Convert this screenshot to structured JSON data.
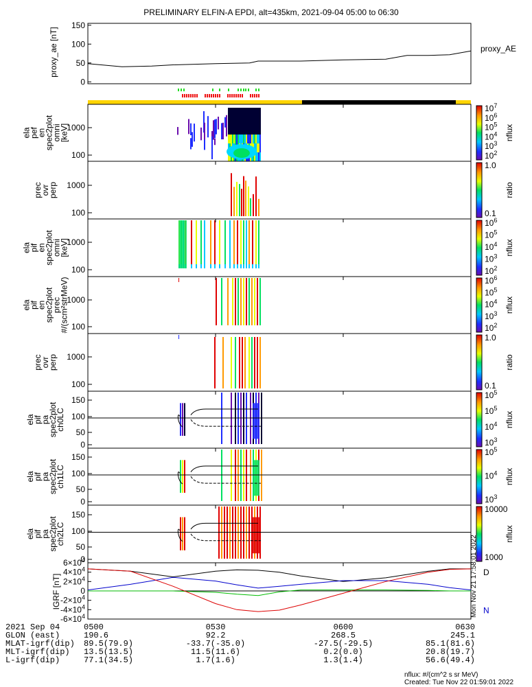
{
  "title": "PRELIMINARY ELFIN-A EPDI, alt=435km, 2021-09-04 05:00 to 06:30",
  "colors": {
    "orbit_bar_day": "#ffd400",
    "orbit_bar_night": "#000000",
    "flag_green": "#22dd22",
    "flag_red": "#ee1111"
  },
  "chart_data": [
    {
      "type": "line",
      "panel": "proxy_ae",
      "ylabel": "proxy_ae [nT]",
      "ylim": [
        -5,
        155
      ],
      "yticks": [
        0,
        50,
        100,
        150
      ],
      "legend": "proxy_AE",
      "x_minutes": [
        0,
        8,
        15,
        20,
        30,
        38,
        40,
        45,
        50,
        60,
        70,
        75,
        80,
        85,
        90
      ],
      "values": [
        48,
        40,
        42,
        45,
        48,
        50,
        55,
        55,
        55,
        58,
        60,
        70,
        70,
        72,
        82
      ]
    },
    {
      "type": "heatmap",
      "panel": "elx_pef_en_spec2plot_omni",
      "ylabel": "ela pef en spec2plot omni [keV]",
      "yticks": [
        "100",
        "1000"
      ],
      "colorbar": {
        "label": "nflux",
        "ticks": [
          "10^2",
          "10^3",
          "10^4",
          "10^5",
          "10^6",
          "10^7"
        ]
      }
    },
    {
      "type": "heatmap",
      "panel": "prec_ovr_perp_e",
      "ylabel": "prec ovr perp",
      "yticks": [
        "100",
        "1000"
      ],
      "colorbar": {
        "label": "ratio",
        "ticks": [
          "0.1",
          "1.0"
        ]
      }
    },
    {
      "type": "heatmap",
      "panel": "elx_pif_en_spec2plot_omni",
      "ylabel": "ela pif en spec2plot omni [keV]",
      "yticks": [
        "100",
        "1000"
      ],
      "colorbar": {
        "label": "nflux",
        "ticks": [
          "10^2",
          "10^3",
          "10^4",
          "10^5",
          "10^6"
        ]
      }
    },
    {
      "type": "heatmap",
      "panel": "elx_pif_en_spec2plot_prec",
      "ylabel": "ela pif en spec2plot prec #/(scm²strMeV)",
      "yticks": [
        "100",
        "1000"
      ],
      "colorbar": {
        "label": "nflux",
        "ticks": [
          "10^2",
          "10^3",
          "10^4",
          "10^5",
          "10^6"
        ]
      }
    },
    {
      "type": "heatmap",
      "panel": "prec_ovr_perp_i",
      "ylabel": "prec ovr perp",
      "yticks": [
        "100",
        "1000"
      ],
      "colorbar": {
        "label": "ratio",
        "ticks": [
          "0.1",
          "1.0"
        ]
      }
    },
    {
      "type": "heatmap",
      "panel": "pa_ch0LC",
      "ylabel": "ela pif pa spec2plot ch0LC",
      "yticks": [
        "0",
        "50",
        "100",
        "150"
      ],
      "colorbar": {
        "label": "nflux",
        "ticks": [
          "10^3",
          "10^4",
          "10^5",
          "10^5"
        ]
      }
    },
    {
      "type": "heatmap",
      "panel": "pa_ch1LC",
      "ylabel": "ela pif pa spec2plot ch1LC",
      "yticks": [
        "0",
        "50",
        "100",
        "150"
      ],
      "colorbar": {
        "label": "nflux",
        "ticks": [
          "10^3",
          "10^4",
          "10^5"
        ]
      }
    },
    {
      "type": "heatmap",
      "panel": "pa_ch2LC",
      "ylabel": "ela pif pa spec2plot ch2LC",
      "yticks": [
        "0",
        "50",
        "100",
        "150"
      ],
      "colorbar": {
        "label": "nflux",
        "ticks": [
          "1000",
          "10000"
        ]
      }
    },
    {
      "type": "line",
      "panel": "igrf",
      "ylabel": "IGRF [nT]",
      "ylim": [
        -60000,
        60000
      ],
      "yticks": [
        "-6x10^4",
        "-4x10^4",
        "-2x10^4",
        "0",
        "2x10^4",
        "4x10^4",
        "6x10^4"
      ],
      "x_minutes": [
        0,
        10,
        20,
        30,
        35,
        40,
        45,
        50,
        60,
        70,
        80,
        85,
        90
      ],
      "series": [
        {
          "name": "D",
          "color": "#000000",
          "values": [
            47000,
            42000,
            30000,
            42000,
            45000,
            44000,
            40000,
            32000,
            20000,
            28000,
            42000,
            47000,
            47000
          ]
        },
        {
          "name": "N",
          "color": "#0000cc",
          "values": [
            2000,
            14000,
            29000,
            21000,
            13000,
            6000,
            10000,
            14000,
            22000,
            22000,
            14000,
            7000,
            2000
          ]
        },
        {
          "name": "",
          "color": "#00bb00",
          "values": [
            0,
            0,
            0,
            -3000,
            -7000,
            -10000,
            -2000,
            2000,
            2000,
            2000,
            1000,
            0,
            0
          ]
        },
        {
          "name": "",
          "color": "#dd0000",
          "values": [
            47000,
            42000,
            10000,
            -27000,
            -40000,
            -44000,
            -41000,
            -30000,
            -5000,
            20000,
            40000,
            46000,
            47000
          ]
        }
      ]
    }
  ],
  "time_axis": {
    "ticks": [
      "0500",
      "0530",
      "0600",
      "0630"
    ]
  },
  "footer": {
    "rows": [
      {
        "label": "2021 Sep 04",
        "values": [
          "0500",
          "0530",
          "0600",
          "0630"
        ]
      },
      {
        "label": "GLON (east)",
        "values": [
          "190.6",
          "92.2",
          "268.5",
          "245.1"
        ]
      },
      {
        "label": "MLAT-igrf(dip)",
        "values": [
          "89.5(79.9)",
          "-33.7(-35.0)",
          "-27.5(-29.5)",
          "85.1(81.6)"
        ]
      },
      {
        "label": "MLT-igrf(dip)",
        "values": [
          "13.5(13.5)",
          "11.5(11.6)",
          "0.2(0.0)",
          "20.8(19.7)"
        ]
      },
      {
        "label": "L-igrf(dip)",
        "values": [
          "77.1(34.5)",
          "1.7(1.6)",
          "1.3(1.4)",
          "56.6(49.4)"
        ]
      }
    ],
    "units_note": "nflux: #/(cm^2 s sr MeV)",
    "created": "Created: Tue Nov 22 01:59:01 2022",
    "side_stamp": "Mon Nov 21 17:58:01 2022"
  }
}
